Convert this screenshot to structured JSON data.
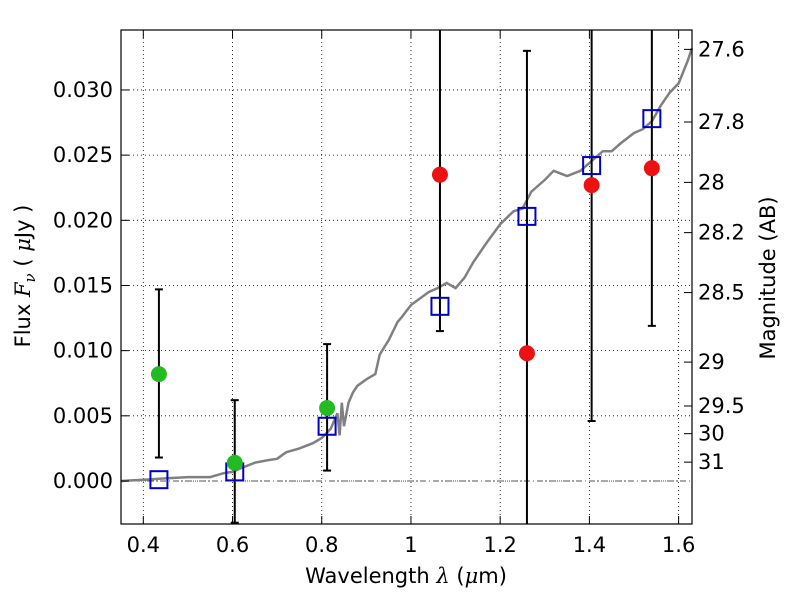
{
  "chart_data": {
    "type": "scatter",
    "xlabel": {
      "text": "Wavelength",
      "symbol": "λ",
      "unit_open": "(",
      "unit_mu": "μ",
      "unit_rest": "m)"
    },
    "ylabel": {
      "text": "Flux",
      "symbol": "F",
      "subscript": "ν",
      "unit_open": "(",
      "unit_mu": "μ",
      "unit_rest": "Jy )"
    },
    "y2label": "Magnitude (AB)",
    "xlim": [
      0.35,
      1.63
    ],
    "ylim": [
      -0.0033,
      0.0346
    ],
    "grid": true,
    "grid_style": "dotted",
    "zero_line_style": "dash-dot",
    "x_ticks": [
      0.4,
      0.6,
      0.8,
      1.0,
      1.2,
      1.4,
      1.6
    ],
    "x_tick_labels": [
      "0.4",
      "0.6",
      "0.8",
      "1",
      "1.2",
      "1.4",
      "1.6"
    ],
    "y_ticks": [
      0.0,
      0.005,
      0.01,
      0.015,
      0.02,
      0.025,
      0.03
    ],
    "y_tick_labels": [
      "0.000",
      "0.005",
      "0.010",
      "0.015",
      "0.020",
      "0.025",
      "0.030"
    ],
    "mag_ticks": [
      {
        "label": "27.6",
        "mag": 27.6
      },
      {
        "label": "27.8",
        "mag": 27.8
      },
      {
        "label": "28",
        "mag": 28.0
      },
      {
        "label": "28.2",
        "mag": 28.2
      },
      {
        "label": "28.5",
        "mag": 28.5
      },
      {
        "label": "29",
        "mag": 29.0
      },
      {
        "label": "29.5",
        "mag": 29.5
      },
      {
        "label": "30",
        "mag": 30.0
      },
      {
        "label": "31",
        "mag": 31.0
      }
    ],
    "template_spectrum": {
      "color": "#808080",
      "x": [
        0.35,
        0.4,
        0.45,
        0.5,
        0.55,
        0.58,
        0.6,
        0.62,
        0.65,
        0.68,
        0.7,
        0.72,
        0.75,
        0.78,
        0.8,
        0.82,
        0.835,
        0.84,
        0.845,
        0.85,
        0.86,
        0.87,
        0.88,
        0.9,
        0.92,
        0.93,
        0.95,
        0.97,
        0.98,
        1.0,
        1.02,
        1.04,
        1.06,
        1.08,
        1.1,
        1.12,
        1.14,
        1.17,
        1.2,
        1.23,
        1.25,
        1.27,
        1.3,
        1.32,
        1.35,
        1.38,
        1.4,
        1.43,
        1.45,
        1.47,
        1.5,
        1.52,
        1.54,
        1.56,
        1.58,
        1.6,
        1.62,
        1.63
      ],
      "y": [
        0.0,
        0.0001,
        0.0002,
        0.0003,
        0.0003,
        0.0006,
        0.0007,
        0.001,
        0.0014,
        0.0016,
        0.0017,
        0.0022,
        0.0025,
        0.0029,
        0.0033,
        0.004,
        0.0052,
        0.0035,
        0.006,
        0.0042,
        0.006,
        0.0068,
        0.0073,
        0.0078,
        0.0082,
        0.0097,
        0.0108,
        0.0122,
        0.0126,
        0.0135,
        0.014,
        0.0145,
        0.0148,
        0.0152,
        0.0148,
        0.0156,
        0.0168,
        0.0183,
        0.0197,
        0.0207,
        0.0209,
        0.0222,
        0.0231,
        0.0238,
        0.0234,
        0.0238,
        0.0244,
        0.0253,
        0.0253,
        0.0259,
        0.0267,
        0.027,
        0.0276,
        0.0288,
        0.0298,
        0.0305,
        0.0322,
        0.0332
      ]
    },
    "series": [
      {
        "name": "",
        "marker": "open-square",
        "color": "#0000cc",
        "x": [
          0.435,
          0.605,
          0.812,
          1.065,
          1.26,
          1.405,
          1.54
        ],
        "y": [
          0.0001,
          0.0007,
          0.0042,
          0.0134,
          0.0203,
          0.0242,
          0.0278
        ]
      },
      {
        "name": "",
        "marker": "filled-circle",
        "color": "#22bb22",
        "x": [
          0.435,
          0.605,
          0.812
        ],
        "y": [
          0.0082,
          0.0014,
          0.0056
        ],
        "err_lo": [
          0.0018,
          -0.0032,
          0.0008
        ],
        "err_hi": [
          0.0147,
          0.0062,
          0.0105
        ]
      },
      {
        "name": "",
        "marker": "filled-circle",
        "color": "#ee1111",
        "x": [
          1.065,
          1.26,
          1.405,
          1.54
        ],
        "y": [
          0.0235,
          0.0098,
          0.0227,
          0.024
        ],
        "err_lo": [
          0.0115,
          -0.0033,
          0.0046,
          0.0119
        ],
        "err_hi": [
          0.0346,
          0.033,
          0.0346,
          0.0346
        ]
      }
    ]
  }
}
